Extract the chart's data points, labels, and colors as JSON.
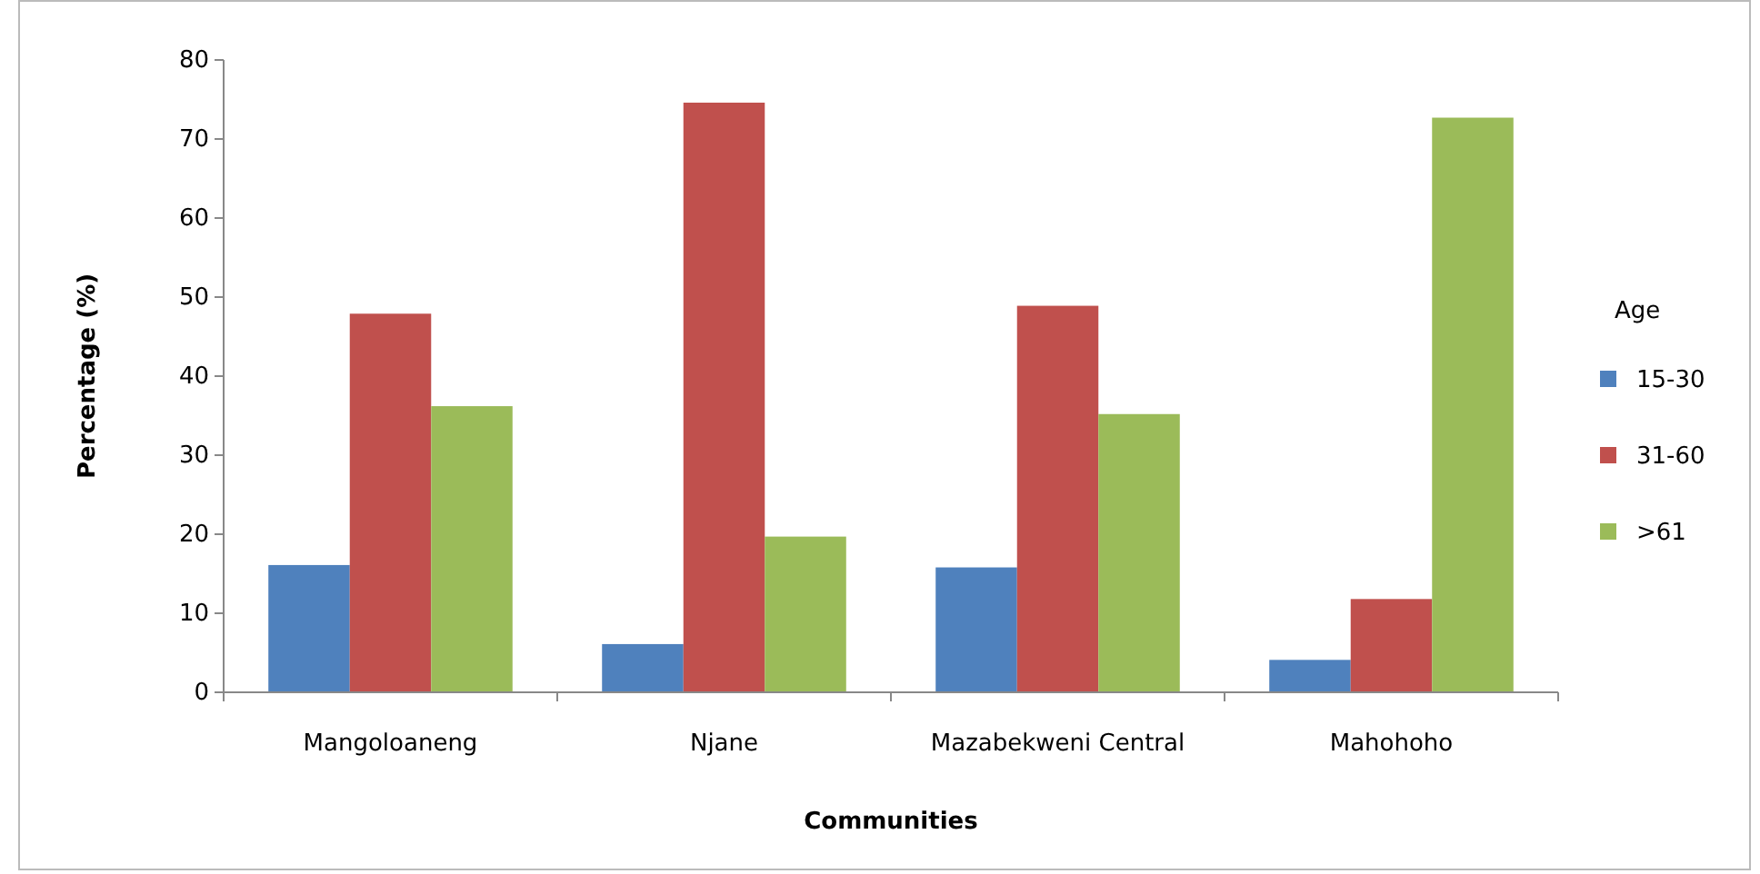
{
  "chart_data": {
    "type": "bar",
    "xlabel": "Communities",
    "ylabel": "Percentage (%)",
    "legend_title": "Age",
    "categories": [
      "Mangoloaneng",
      "Njane",
      "Mazabekweni Central",
      "Mahohoho"
    ],
    "series": [
      {
        "name": "15-30",
        "color": "#4f81bd",
        "values": [
          16.1,
          6.1,
          15.8,
          4.1
        ]
      },
      {
        "name": "31-60",
        "color": "#c0504d",
        "values": [
          47.9,
          74.6,
          48.9,
          11.8
        ]
      },
      {
        "name": ">61",
        "color": "#9bbb59",
        "values": [
          36.2,
          19.7,
          35.2,
          72.7
        ]
      }
    ],
    "ylim": [
      0,
      80
    ],
    "yticks": [
      0,
      10,
      20,
      30,
      40,
      50,
      60,
      70,
      80
    ],
    "grid": false,
    "legend": "right"
  }
}
